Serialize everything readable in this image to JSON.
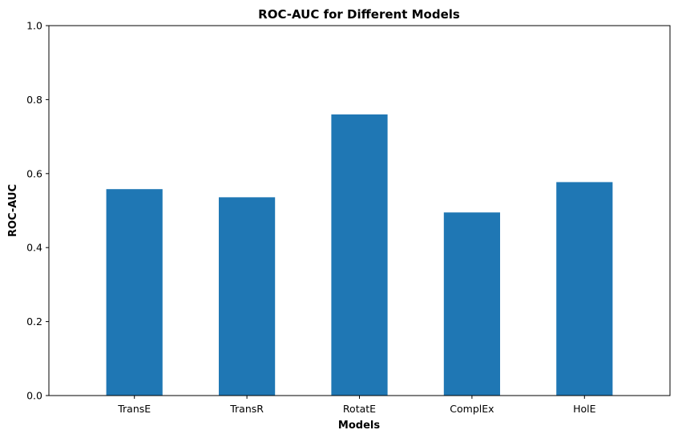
{
  "chart_data": {
    "type": "bar",
    "title": "ROC-AUC for Different Models",
    "xlabel": "Models",
    "ylabel": "ROC-AUC",
    "categories": [
      "TransE",
      "TransR",
      "RotatE",
      "ComplEx",
      "HolE"
    ],
    "values": [
      0.558,
      0.536,
      0.76,
      0.495,
      0.577
    ],
    "ylim": [
      0,
      1
    ],
    "yticks": [
      0.0,
      0.2,
      0.4,
      0.6,
      0.8,
      1.0
    ],
    "ytick_labels": [
      "0.0",
      "0.2",
      "0.4",
      "0.6",
      "0.8",
      "1.0"
    ],
    "bar_color": "#1f77b4",
    "grid": false,
    "legend": "none"
  }
}
